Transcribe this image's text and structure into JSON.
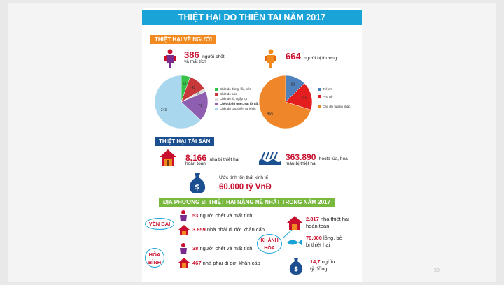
{
  "poster": {
    "title": "THIỆT HẠI DO THIÊN TAI NĂM 2017",
    "sections": {
      "people": "THIỆT HẠI VỀ NGƯỜI",
      "property": "THIỆT HẠI TÀI SẢN",
      "localities": "ĐỊA PHƯƠNG BỊ THIỆT HẠI NẶNG NỀ NHẤT TRONG NĂM 2017"
    },
    "people": {
      "dead_number": "386",
      "dead_text_1": "người chết",
      "dead_text_2": "và mất tích",
      "injured_number": "664",
      "injured_text": "người bị thương"
    },
    "property": {
      "houses_number": "8.166",
      "houses_text_1": "nhà bị thiệt hại",
      "houses_text_2": "hoàn toàn",
      "crops_number": "363.890",
      "crops_text_1": "hecta lúa, hoa",
      "crops_text_2": "màu bị thiệt hại",
      "loss_text": "Ước tính tổn thất kinh tế",
      "loss_value": "60.000 tỷ VnĐ"
    },
    "localities": {
      "yen_bai": {
        "name_1": "YÊN BÁI",
        "deaths": "53",
        "deaths_text": "người chết và mất tích",
        "relocated": "3.859",
        "relocated_text": "nhà phải di dời khẩn cấp"
      },
      "hoa_binh": {
        "name_1": "HÒA",
        "name_2": "BÌNH",
        "deaths": "38",
        "deaths_text": "người chết và mất tích",
        "relocated": "467",
        "relocated_text": "nhà phải di dời khẩn cấp"
      },
      "khanh_hoa": {
        "name_1": "KHÁNH",
        "name_2": "HÒA",
        "houses": "2.817",
        "houses_text_1": "nhà thiệt hại",
        "houses_text_2": "hoàn toàn",
        "cages": "70.900",
        "cages_text_1": "lồng, bè",
        "cages_text_2": "bị thiệt hại",
        "money": "14,7",
        "money_text_1": "nghìn",
        "money_text_2": "tỷ đồng"
      }
    }
  },
  "chart_data": [
    {
      "type": "pie",
      "series": [
        {
          "name": "Chết do động, lốc, sét",
          "value": 21
        },
        {
          "name": "Chết do bão",
          "value": 43
        },
        {
          "name": "Chết do lũ, ngập lụt",
          "value": 8
        },
        {
          "name": "Chết do lũ quét, sạt lở đất",
          "value": 71
        },
        {
          "name": "Chết do các thiên tai khác",
          "value": 243
        }
      ],
      "value_labels": [
        "21",
        "43",
        "8",
        "71",
        "243"
      ],
      "colors": [
        "#36c24a",
        "#c8373a",
        "#dcdcdc",
        "#8e5fb0",
        "#a9d7ee"
      ]
    },
    {
      "type": "pie",
      "series": [
        {
          "name": "Trẻ em",
          "value": 83
        },
        {
          "name": "Phụ nữ",
          "value": 115
        },
        {
          "name": "Các đối tượng khác",
          "value": 466
        }
      ],
      "value_labels": [
        "83",
        "115",
        "466"
      ],
      "colors": [
        "#4f81bd",
        "#e41e1e",
        "#f0862a"
      ]
    }
  ],
  "page_number": "30"
}
